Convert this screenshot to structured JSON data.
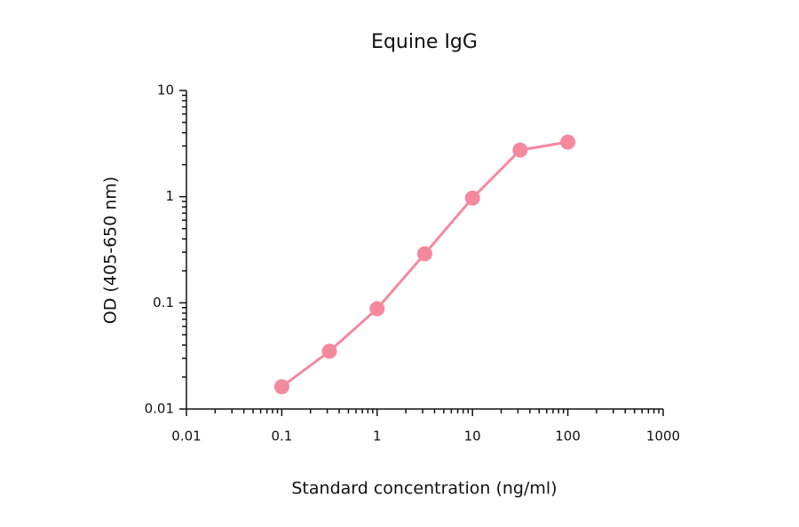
{
  "chart_data": {
    "type": "line",
    "title": "Equine IgG",
    "x_label": "Standard concentration (ng/ml)",
    "y_label": "OD (405-650 nm)",
    "x": [
      0.1,
      0.316,
      1,
      3.16,
      10,
      31.6,
      100
    ],
    "series": [
      {
        "name": "Equine IgG",
        "color": "#f4899e",
        "values": [
          0.0162,
          0.035,
          0.088,
          0.29,
          0.97,
          2.75,
          3.27
        ]
      }
    ],
    "xlim": [
      0.01,
      1000
    ],
    "ylim": [
      0.01,
      10
    ],
    "xticks": [
      0.01,
      0.1,
      1,
      10,
      100,
      1000
    ],
    "yticks": [
      0.01,
      0.1,
      1,
      10
    ],
    "xscale": "log",
    "yscale": "log",
    "minor_ticks": true,
    "grid": false
  }
}
